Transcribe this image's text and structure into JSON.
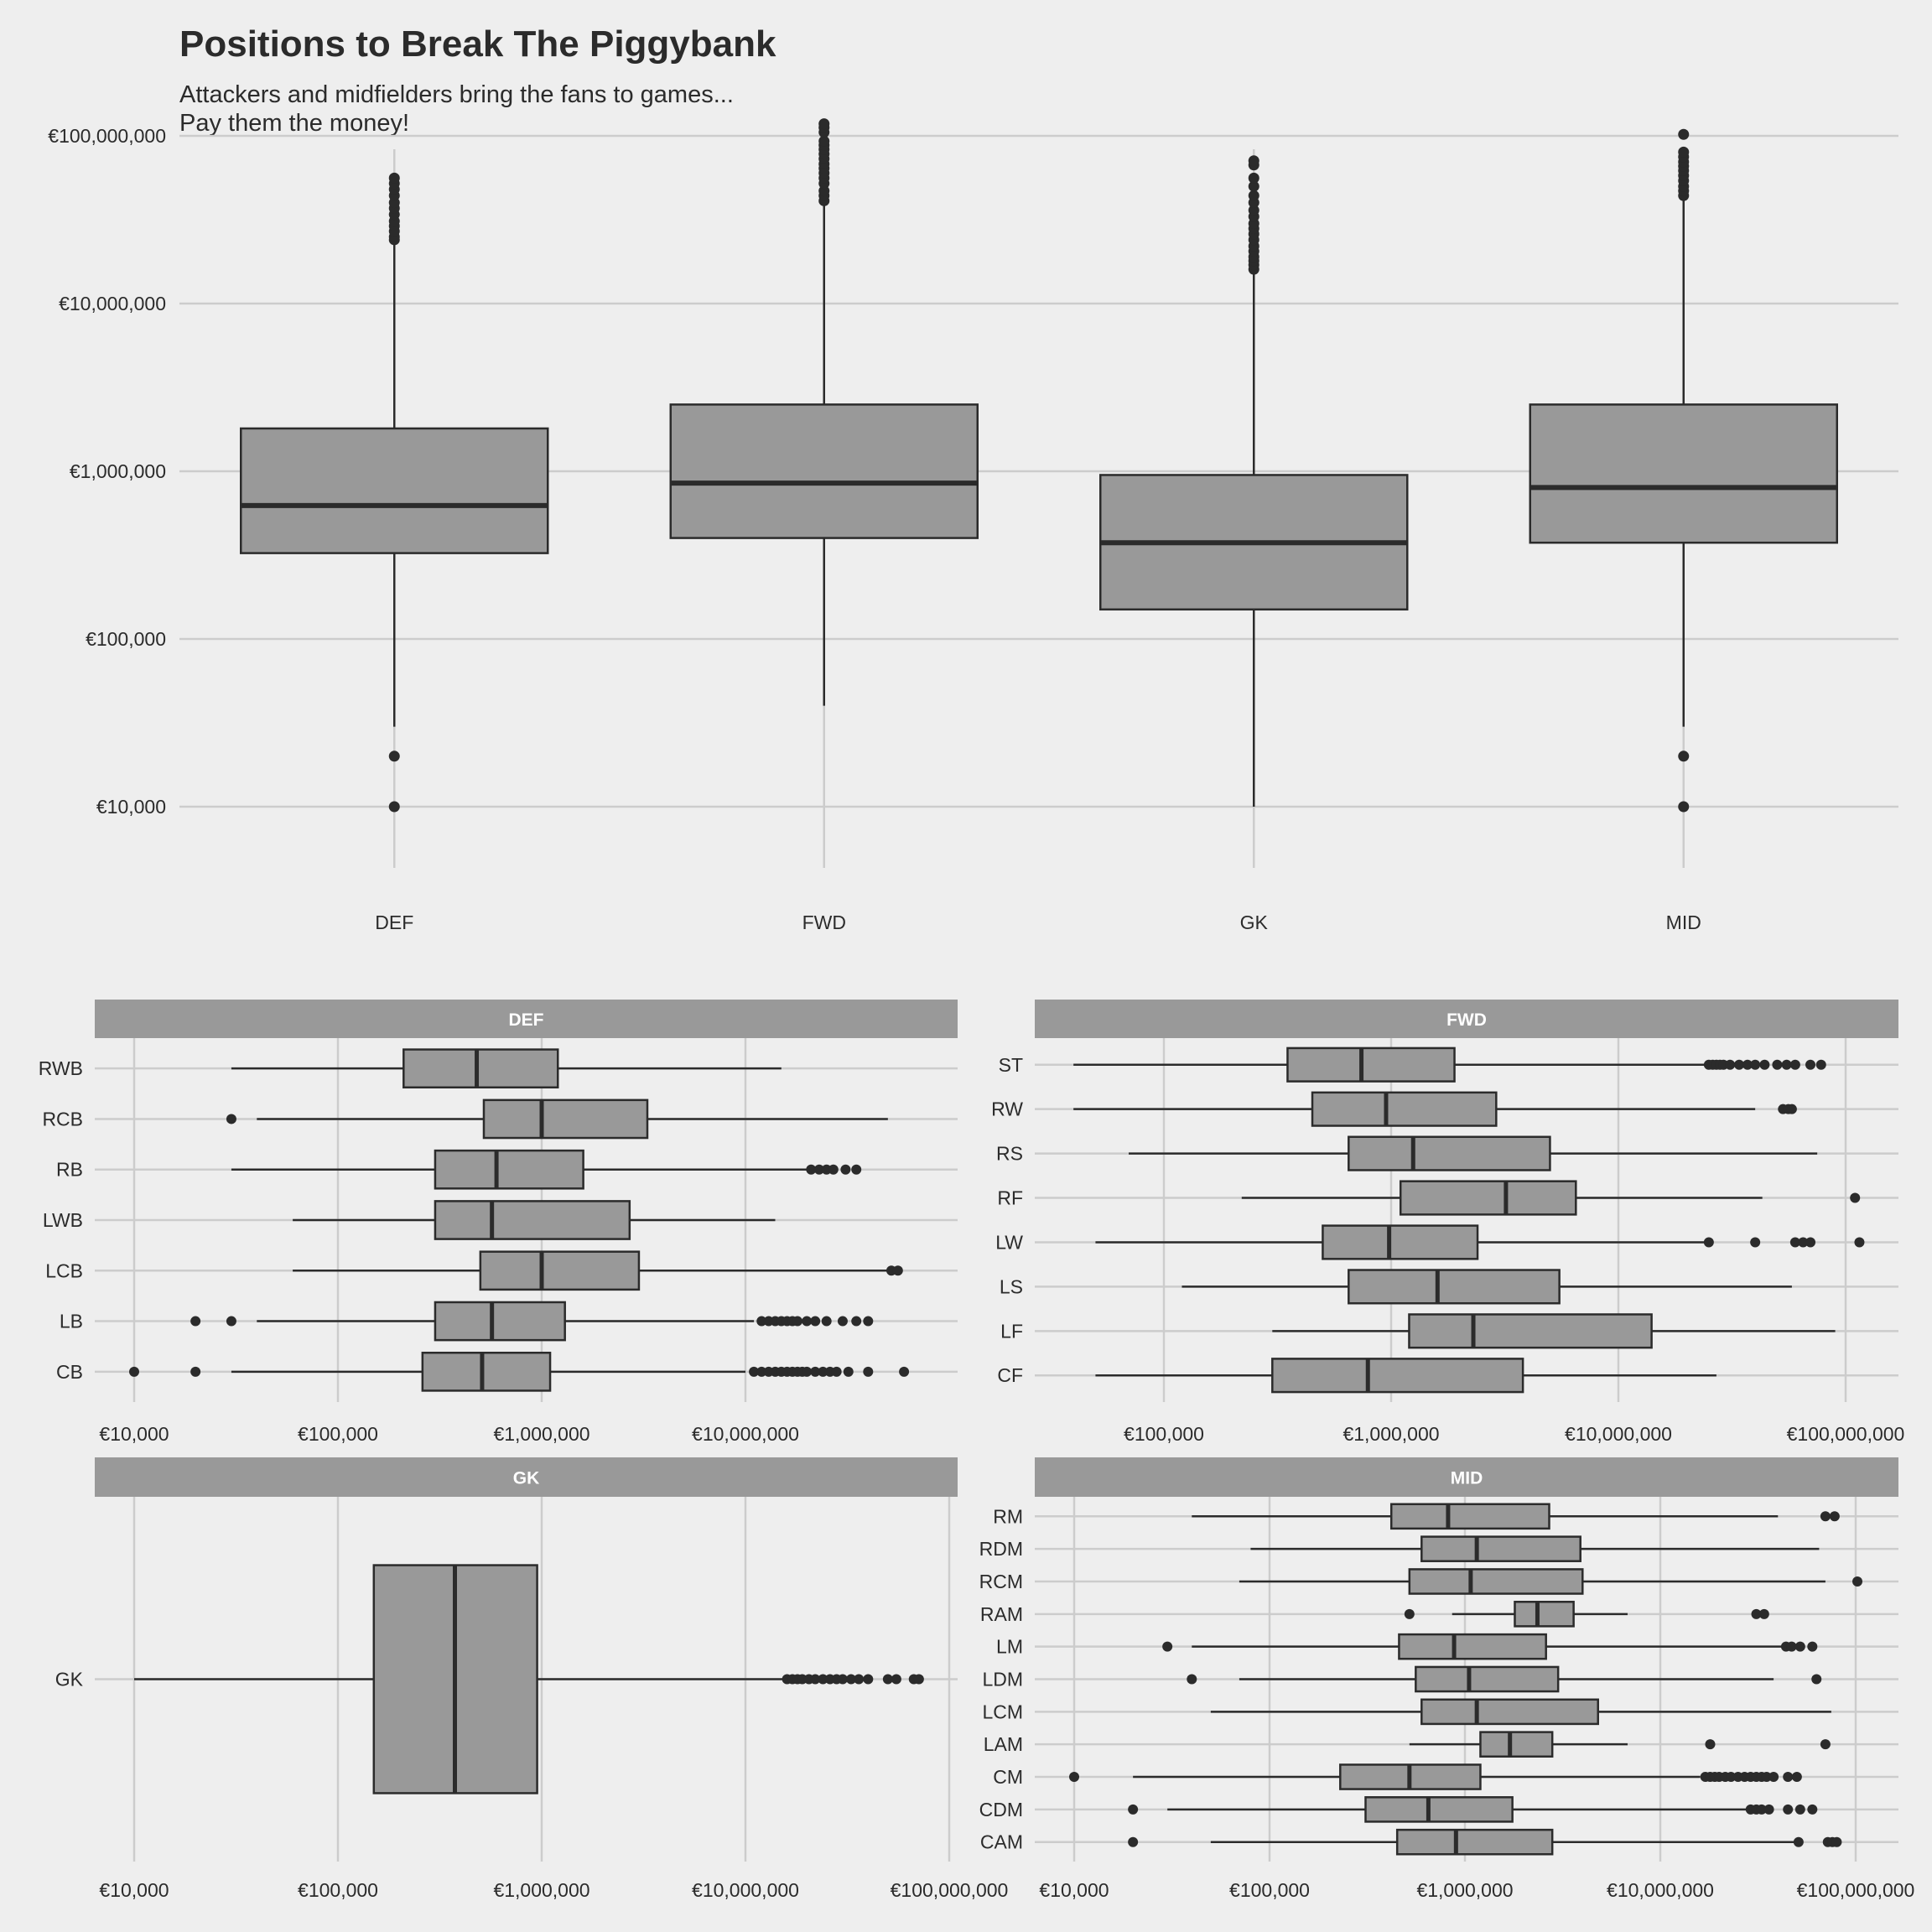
{
  "title": "Positions to Break The Piggybank",
  "subtitle_line1": "Attackers and midfielders bring the fans to games...",
  "subtitle_line2": "Pay them the money!",
  "colors": {
    "background": "#eeeeee",
    "grid": "#cccccc",
    "box_fill": "#999999",
    "ink": "#2b2b2b",
    "strip_text": "#ffffff"
  },
  "chart_data": [
    {
      "type": "box",
      "panel": "main",
      "scale": "log10",
      "categories": [
        "DEF",
        "FWD",
        "GK",
        "MID"
      ],
      "y_ticks": [
        10000,
        100000,
        1000000,
        10000000,
        100000000
      ],
      "y_tick_labels": [
        "€10,000",
        "€100,000",
        "€1,000,000",
        "€10,000,000",
        "€100,000,000"
      ],
      "boxes": [
        {
          "label": "DEF",
          "low": 30000,
          "q1": 325000,
          "median": 625000,
          "q3": 1800000,
          "high": 23000000,
          "outliers": [
            10000,
            20000,
            24000000,
            25000000,
            27000000,
            29000000,
            31000000,
            34000000,
            37000000,
            40000000,
            44000000,
            48000000,
            52000000,
            56000000
          ]
        },
        {
          "label": "FWD",
          "low": 40000,
          "q1": 400000,
          "median": 850000,
          "q3": 2500000,
          "high": 40000000,
          "outliers": [
            41000000,
            44000000,
            47000000,
            52000000,
            56000000,
            60000000,
            64000000,
            68000000,
            73000000,
            78000000,
            83000000,
            88000000,
            93000000,
            105000000,
            112000000,
            118000000
          ]
        },
        {
          "label": "GK",
          "low": 10000,
          "q1": 150000,
          "median": 375000,
          "q3": 950000,
          "high": 15500000,
          "outliers": [
            16000000,
            17000000,
            18000000,
            19000000,
            20500000,
            22000000,
            24000000,
            26000000,
            28000000,
            30000000,
            33000000,
            36000000,
            40000000,
            44000000,
            50000000,
            56000000,
            67000000,
            71000000
          ]
        },
        {
          "label": "MID",
          "low": 30000,
          "q1": 375000,
          "median": 800000,
          "q3": 2500000,
          "high": 43000000,
          "outliers": [
            10000,
            20000,
            44000000,
            47000000,
            50000000,
            54000000,
            58000000,
            62000000,
            66000000,
            70000000,
            75000000,
            80000000,
            102000000
          ]
        }
      ]
    },
    {
      "type": "box",
      "panel": "facet",
      "strip": "DEF",
      "scale": "log10",
      "x_ticks": [
        10000,
        100000,
        1000000,
        10000000
      ],
      "x_tick_labels": [
        "€10,000",
        "€100,000",
        "€1,000,000",
        "€10,000,000"
      ],
      "categories": [
        "RWB",
        "RCB",
        "RB",
        "LWB",
        "LCB",
        "LB",
        "CB"
      ],
      "boxes": [
        {
          "label": "RWB",
          "low": 30000,
          "q1": 210000,
          "median": 480000,
          "q3": 1200000,
          "high": 15000000,
          "outliers": []
        },
        {
          "label": "RCB",
          "low": 40000,
          "q1": 520000,
          "median": 1000000,
          "q3": 3300000,
          "high": 50000000,
          "outliers": [
            30000
          ]
        },
        {
          "label": "RB",
          "low": 30000,
          "q1": 300000,
          "median": 600000,
          "q3": 1600000,
          "high": 20000000,
          "outliers": [
            21000000,
            23000000,
            25000000,
            27000000,
            31000000,
            35000000
          ]
        },
        {
          "label": "LWB",
          "low": 60000,
          "q1": 300000,
          "median": 570000,
          "q3": 2700000,
          "high": 14000000,
          "outliers": []
        },
        {
          "label": "LCB",
          "low": 60000,
          "q1": 500000,
          "median": 1000000,
          "q3": 3000000,
          "high": 50000000,
          "outliers": [
            52000000,
            56000000
          ]
        },
        {
          "label": "LB",
          "low": 40000,
          "q1": 300000,
          "median": 570000,
          "q3": 1300000,
          "high": 11000000,
          "outliers": [
            20000,
            30000,
            12000000,
            13000000,
            14000000,
            15000000,
            16000000,
            17000000,
            18000000,
            20000000,
            22000000,
            25000000,
            30000000,
            35000000,
            40000000
          ]
        },
        {
          "label": "CB",
          "low": 30000,
          "q1": 260000,
          "median": 510000,
          "q3": 1100000,
          "high": 10000000,
          "outliers": [
            10000,
            20000,
            11000000,
            12000000,
            13000000,
            14000000,
            15000000,
            16000000,
            17000000,
            18000000,
            19000000,
            20000000,
            22000000,
            24000000,
            26000000,
            28000000,
            32000000,
            40000000,
            60000000
          ]
        }
      ]
    },
    {
      "type": "box",
      "panel": "facet",
      "strip": "FWD",
      "scale": "log10",
      "x_ticks": [
        100000,
        1000000,
        10000000,
        100000000
      ],
      "x_tick_labels": [
        "€100,000",
        "€1,000,000",
        "€10,000,000",
        "€100,000,000"
      ],
      "categories": [
        "ST",
        "RW",
        "RS",
        "RF",
        "LW",
        "LS",
        "LF",
        "CF"
      ],
      "boxes": [
        {
          "label": "ST",
          "low": 40000,
          "q1": 350000,
          "median": 740000,
          "q3": 1900000,
          "high": 24000000,
          "outliers": [
            25000000,
            26000000,
            27000000,
            28000000,
            29000000,
            31000000,
            34000000,
            37000000,
            40000000,
            44000000,
            50000000,
            55000000,
            60000000,
            70000000,
            78000000
          ]
        },
        {
          "label": "RW",
          "low": 40000,
          "q1": 450000,
          "median": 950000,
          "q3": 2900000,
          "high": 40000000,
          "outliers": [
            53000000,
            56000000,
            58000000
          ]
        },
        {
          "label": "RS",
          "low": 70000,
          "q1": 650000,
          "median": 1250000,
          "q3": 5000000,
          "high": 75000000,
          "outliers": []
        },
        {
          "label": "RF",
          "low": 220000,
          "q1": 1100000,
          "median": 3200000,
          "q3": 6500000,
          "high": 43000000,
          "outliers": [
            110000000
          ]
        },
        {
          "label": "LW",
          "low": 50000,
          "q1": 500000,
          "median": 980000,
          "q3": 2400000,
          "high": 24000000,
          "outliers": [
            25000000,
            40000000,
            60000000,
            65000000,
            70000000,
            115000000
          ]
        },
        {
          "label": "LS",
          "low": 120000,
          "q1": 650000,
          "median": 1600000,
          "q3": 5500000,
          "high": 58000000,
          "outliers": []
        },
        {
          "label": "LF",
          "low": 300000,
          "q1": 1200000,
          "median": 2300000,
          "q3": 14000000,
          "high": 90000000,
          "outliers": []
        },
        {
          "label": "CF",
          "low": 50000,
          "q1": 300000,
          "median": 790000,
          "q3": 3800000,
          "high": 27000000,
          "outliers": []
        }
      ]
    },
    {
      "type": "box",
      "panel": "facet",
      "strip": "GK",
      "scale": "log10",
      "x_ticks": [
        10000,
        100000,
        1000000,
        10000000,
        100000000
      ],
      "x_tick_labels": [
        "€10,000",
        "€100,000",
        "€1,000,000",
        "€10,000,000",
        "€100,000,000"
      ],
      "categories": [
        "GK"
      ],
      "boxes": [
        {
          "label": "GK",
          "low": 10000,
          "q1": 150000,
          "median": 375000,
          "q3": 950000,
          "high": 15500000,
          "outliers": [
            16000000,
            17000000,
            18000000,
            19000000,
            20500000,
            22000000,
            24000000,
            26000000,
            28000000,
            30000000,
            33000000,
            36000000,
            40000000,
            50000000,
            55000000,
            67000000,
            71000000
          ]
        }
      ]
    },
    {
      "type": "box",
      "panel": "facet",
      "strip": "MID",
      "scale": "log10",
      "x_ticks": [
        10000,
        100000,
        1000000,
        10000000,
        100000000
      ],
      "x_tick_labels": [
        "€10,000",
        "€100,000",
        "€1,000,000",
        "€10,000,000",
        "€100,000,000"
      ],
      "categories": [
        "RM",
        "RDM",
        "RCM",
        "RAM",
        "LM",
        "LDM",
        "LCM",
        "LAM",
        "CM",
        "CDM",
        "CAM"
      ],
      "boxes": [
        {
          "label": "RM",
          "low": 40000,
          "q1": 420000,
          "median": 820000,
          "q3": 2700000,
          "high": 40000000,
          "outliers": [
            70000000,
            78000000
          ]
        },
        {
          "label": "RDM",
          "low": 80000,
          "q1": 600000,
          "median": 1150000,
          "q3": 3900000,
          "high": 65000000,
          "outliers": []
        },
        {
          "label": "RCM",
          "low": 70000,
          "q1": 520000,
          "median": 1070000,
          "q3": 4000000,
          "high": 70000000,
          "outliers": [
            102000000
          ]
        },
        {
          "label": "RAM",
          "low": 860000,
          "q1": 1800000,
          "median": 2350000,
          "q3": 3600000,
          "high": 6800000,
          "outliers": [
            520000,
            31000000,
            34000000
          ]
        },
        {
          "label": "LM",
          "low": 40000,
          "q1": 460000,
          "median": 880000,
          "q3": 2600000,
          "high": 42000000,
          "outliers": [
            30000,
            44000000,
            47000000,
            52000000,
            60000000
          ]
        },
        {
          "label": "LDM",
          "low": 70000,
          "q1": 560000,
          "median": 1050000,
          "q3": 3000000,
          "high": 38000000,
          "outliers": [
            40000,
            63000000
          ]
        },
        {
          "label": "LCM",
          "low": 50000,
          "q1": 600000,
          "median": 1150000,
          "q3": 4800000,
          "high": 75000000,
          "outliers": []
        },
        {
          "label": "LAM",
          "low": 520000,
          "q1": 1200000,
          "median": 1700000,
          "q3": 2800000,
          "high": 6800000,
          "outliers": [
            18000000,
            70000000
          ]
        },
        {
          "label": "CM",
          "low": 20000,
          "q1": 230000,
          "median": 520000,
          "q3": 1200000,
          "high": 16000000,
          "outliers": [
            10000,
            17000000,
            18000000,
            19000000,
            20000000,
            21500000,
            23000000,
            25000000,
            27000000,
            29000000,
            31000000,
            33000000,
            35000000,
            38000000,
            45000000,
            50000000
          ]
        },
        {
          "label": "CDM",
          "low": 30000,
          "q1": 310000,
          "median": 650000,
          "q3": 1750000,
          "high": 28000000,
          "outliers": [
            20000,
            29000000,
            31000000,
            33000000,
            36000000,
            45000000,
            52000000,
            60000000
          ]
        },
        {
          "label": "CAM",
          "low": 50000,
          "q1": 450000,
          "median": 900000,
          "q3": 2800000,
          "high": 50000000,
          "outliers": [
            20000,
            51000000,
            72000000,
            76000000,
            80000000
          ]
        }
      ]
    }
  ]
}
